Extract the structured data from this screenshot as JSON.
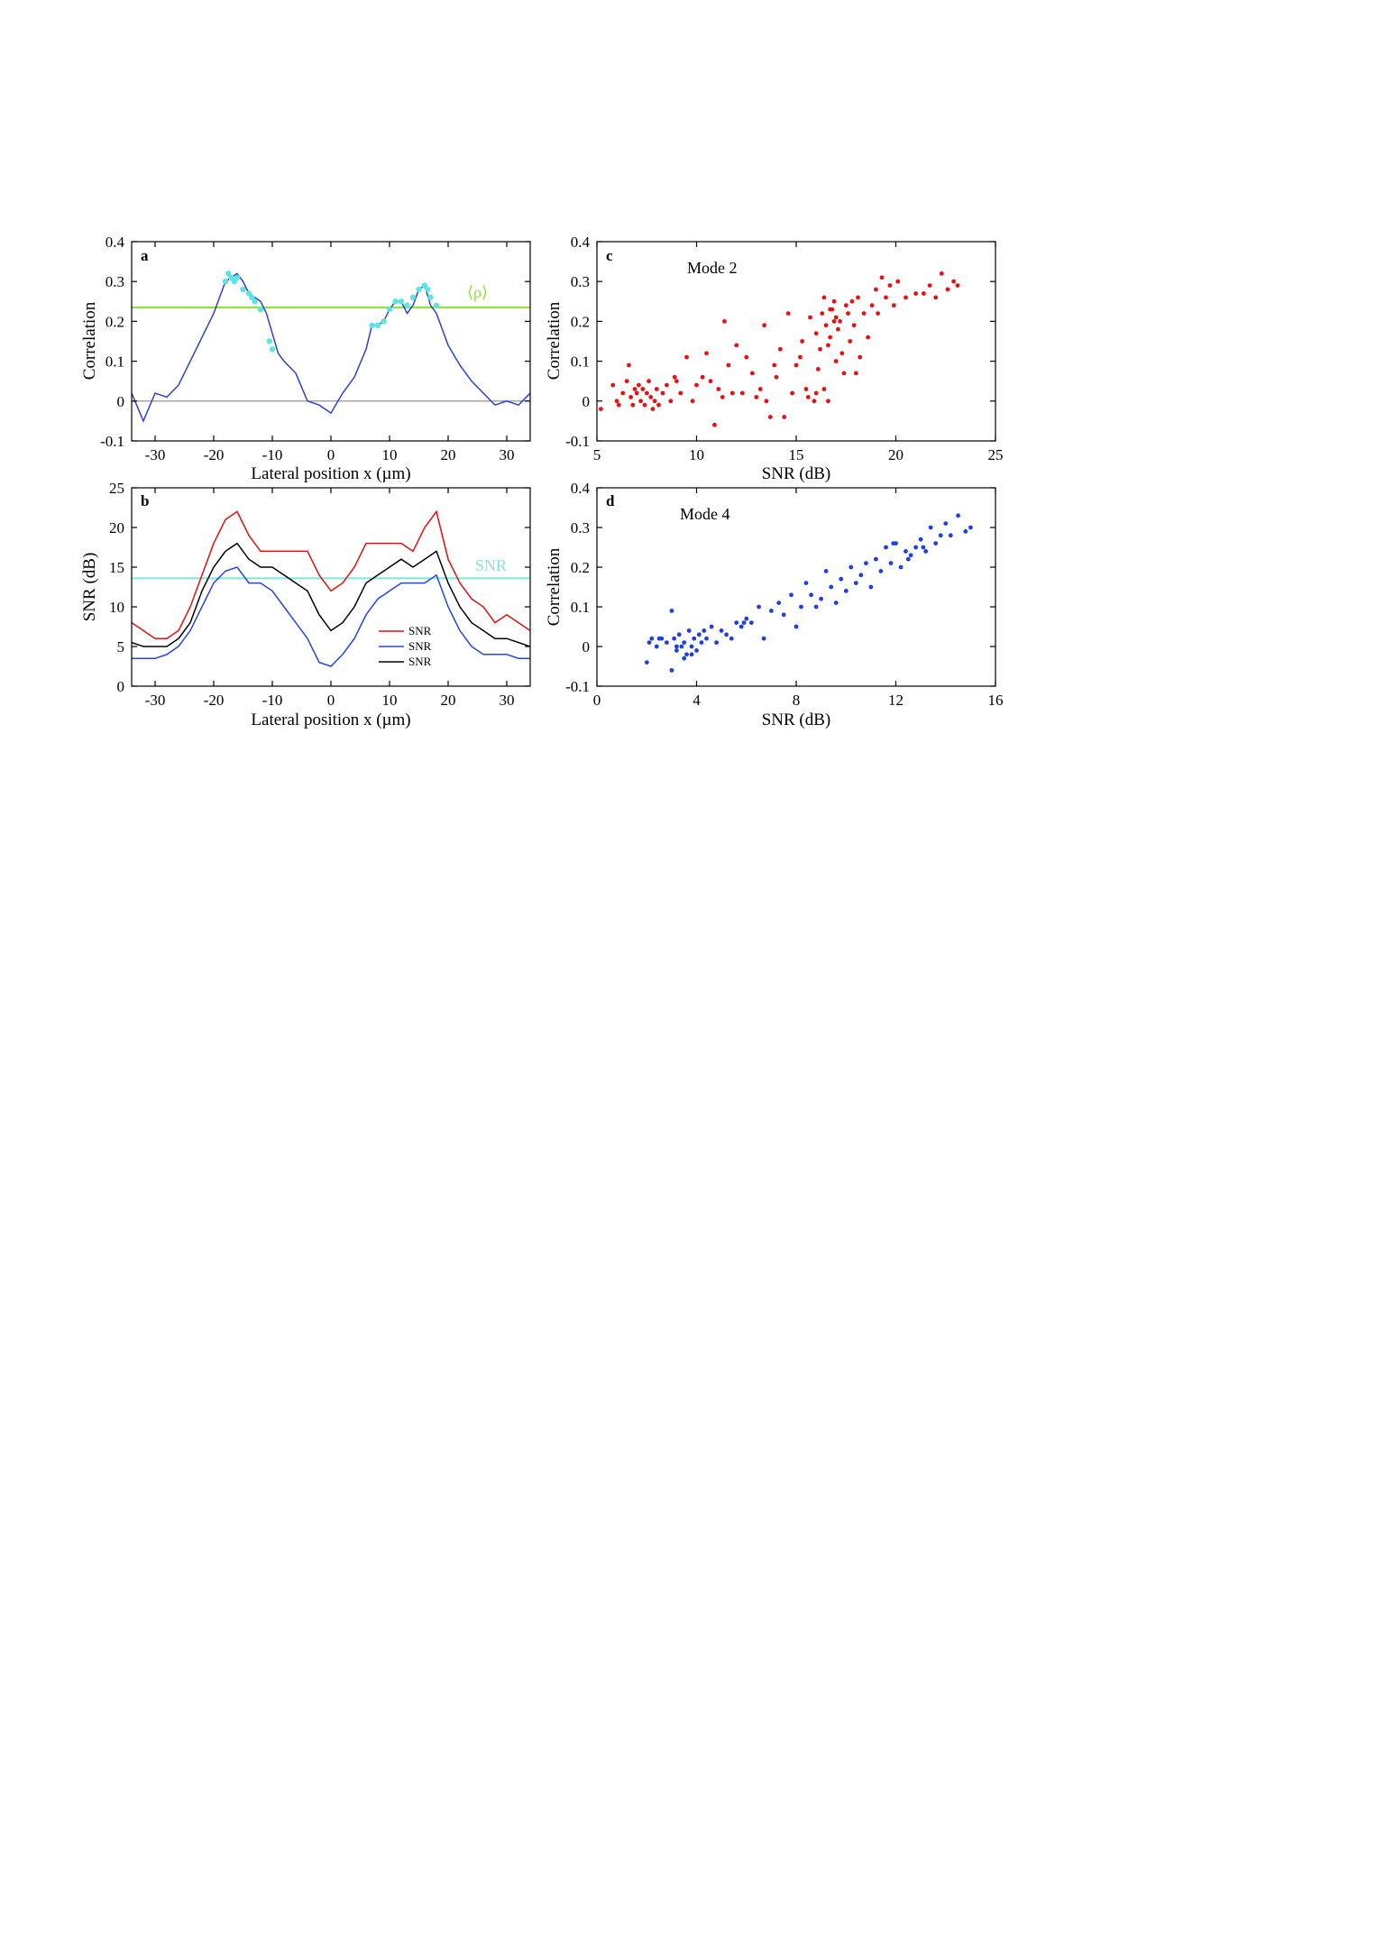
{
  "colors": {
    "corr_line": "#2b3fd6",
    "corr_markers": "#5fe3e3",
    "mean_line": "#8ee23a",
    "zero_line": "#888888",
    "snr2": "#e01010",
    "snr4": "#2546e0",
    "snr24": "#000000",
    "snr_threshold": "#7fe8d8",
    "scatter_c": "#e81010",
    "scatter_d": "#1f3fe0"
  },
  "chart_data": [
    {
      "panel": "a",
      "type": "line",
      "xlabel": "Lateral position x (µm)",
      "ylabel": "Correlation",
      "xlim": [
        -34,
        34
      ],
      "ylim": [
        -0.1,
        0.4
      ],
      "xticks": [
        "-30",
        "-20",
        "-10",
        "0",
        "10",
        "20",
        "30"
      ],
      "yticks": [
        "-0.1",
        "0",
        "0.1",
        "0.2",
        "0.3",
        "0.4"
      ],
      "reference_lines": [
        {
          "y": 0.235,
          "label": "⟨ρ⟩"
        },
        {
          "y": 0
        }
      ],
      "x": [
        -34,
        -32,
        -30,
        -28,
        -26,
        -24,
        -22,
        -20,
        -19,
        -18,
        -17,
        -16,
        -15,
        -14,
        -13,
        -12,
        -11,
        -10,
        -9,
        -8,
        -6,
        -4,
        -2,
        0,
        2,
        4,
        6,
        7,
        8,
        9,
        10,
        11,
        12,
        13,
        14,
        15,
        16,
        17,
        18,
        19,
        20,
        22,
        24,
        26,
        28,
        30,
        32,
        34
      ],
      "y": [
        0.02,
        -0.05,
        0.02,
        0.01,
        0.04,
        0.1,
        0.16,
        0.22,
        0.26,
        0.3,
        0.31,
        0.32,
        0.3,
        0.27,
        0.26,
        0.25,
        0.22,
        0.17,
        0.12,
        0.1,
        0.07,
        0.0,
        -0.01,
        -0.03,
        0.02,
        0.06,
        0.13,
        0.19,
        0.19,
        0.2,
        0.23,
        0.25,
        0.25,
        0.22,
        0.24,
        0.28,
        0.29,
        0.24,
        0.22,
        0.18,
        0.14,
        0.09,
        0.05,
        0.02,
        -0.01,
        0.0,
        -0.01,
        0.02
      ],
      "highlight_points": [
        [
          -18,
          0.3
        ],
        [
          -17.5,
          0.32
        ],
        [
          -17,
          0.31
        ],
        [
          -16.5,
          0.3
        ],
        [
          -16,
          0.31
        ],
        [
          -15,
          0.28
        ],
        [
          -14,
          0.27
        ],
        [
          -13.5,
          0.26
        ],
        [
          -13,
          0.25
        ],
        [
          -12,
          0.23
        ],
        [
          -10.5,
          0.15
        ],
        [
          -10,
          0.13
        ],
        [
          7,
          0.19
        ],
        [
          8,
          0.19
        ],
        [
          9,
          0.2
        ],
        [
          10,
          0.23
        ],
        [
          11,
          0.25
        ],
        [
          12,
          0.25
        ],
        [
          13,
          0.24
        ],
        [
          14,
          0.26
        ],
        [
          15,
          0.28
        ],
        [
          16,
          0.29
        ],
        [
          16.5,
          0.28
        ],
        [
          17,
          0.26
        ],
        [
          18,
          0.24
        ]
      ]
    },
    {
      "panel": "b",
      "type": "line",
      "xlabel": "Lateral position x (µm)",
      "ylabel": "SNR (dB)",
      "xlim": [
        -34,
        34
      ],
      "ylim": [
        0,
        25
      ],
      "xticks": [
        "-30",
        "-20",
        "-10",
        "0",
        "10",
        "20",
        "30"
      ],
      "yticks": [
        "0",
        "5",
        "10",
        "15",
        "20",
        "25"
      ],
      "threshold": {
        "y": 13.6,
        "label": "SNR"
      },
      "legend": [
        "SNR",
        "SNR",
        "SNR"
      ],
      "x": [
        -34,
        -32,
        -30,
        -28,
        -26,
        -24,
        -22,
        -20,
        -18,
        -16,
        -14,
        -12,
        -10,
        -8,
        -6,
        -4,
        -2,
        0,
        2,
        4,
        6,
        8,
        10,
        12,
        14,
        16,
        18,
        20,
        22,
        24,
        26,
        28,
        30,
        32,
        34
      ],
      "series": [
        {
          "values": [
            8,
            7,
            6,
            6,
            7,
            10,
            14,
            18,
            21,
            22,
            19,
            17,
            17,
            17,
            17,
            17,
            14,
            12,
            13,
            15,
            18,
            18,
            18,
            18,
            17,
            20,
            22,
            16,
            13,
            11,
            10,
            8,
            9,
            8,
            7
          ]
        },
        {
          "values": [
            3.5,
            3.5,
            3.5,
            4,
            5,
            7,
            10,
            13,
            14.5,
            15,
            13,
            13,
            12,
            10,
            8,
            6,
            3,
            2.5,
            4,
            6,
            9,
            11,
            12,
            13,
            13,
            13,
            14,
            10,
            7,
            5,
            4,
            4,
            4,
            3.5,
            3.5
          ]
        },
        {
          "values": [
            5.5,
            5,
            5,
            5,
            6,
            8,
            12,
            15,
            17,
            18,
            16,
            15,
            15,
            14,
            13,
            12,
            9,
            7,
            8,
            10,
            13,
            14,
            15,
            16,
            15,
            16,
            17,
            13,
            10,
            8,
            7,
            6,
            6,
            5.5,
            5
          ]
        }
      ]
    },
    {
      "panel": "c",
      "type": "scatter",
      "title": "Mode 2",
      "xlabel": "SNR (dB)",
      "ylabel": "Correlation",
      "xlim": [
        5,
        25
      ],
      "ylim": [
        -0.1,
        0.4
      ],
      "xticks": [
        "5",
        "10",
        "15",
        "20",
        "25"
      ],
      "yticks": [
        "-0.1",
        "0",
        "0.1",
        "0.2",
        "0.3",
        "0.4"
      ],
      "points": [
        [
          5.2,
          -0.02
        ],
        [
          5.8,
          0.04
        ],
        [
          6.0,
          0.0
        ],
        [
          6.1,
          -0.01
        ],
        [
          6.3,
          0.02
        ],
        [
          6.5,
          0.05
        ],
        [
          6.6,
          0.09
        ],
        [
          6.7,
          0.01
        ],
        [
          6.8,
          -0.01
        ],
        [
          6.9,
          0.03
        ],
        [
          7.0,
          0.02
        ],
        [
          7.1,
          0.04
        ],
        [
          7.2,
          0.0
        ],
        [
          7.3,
          0.03
        ],
        [
          7.4,
          -0.01
        ],
        [
          7.5,
          0.02
        ],
        [
          7.6,
          0.05
        ],
        [
          7.7,
          0.01
        ],
        [
          7.8,
          -0.02
        ],
        [
          7.9,
          0.0
        ],
        [
          8.0,
          0.03
        ],
        [
          8.1,
          -0.01
        ],
        [
          8.3,
          0.02
        ],
        [
          8.5,
          0.04
        ],
        [
          8.7,
          0.0
        ],
        [
          8.9,
          0.06
        ],
        [
          9.0,
          0.05
        ],
        [
          9.2,
          0.02
        ],
        [
          9.5,
          0.11
        ],
        [
          9.8,
          0.0
        ],
        [
          10.0,
          0.04
        ],
        [
          10.3,
          0.06
        ],
        [
          10.5,
          0.12
        ],
        [
          10.7,
          0.05
        ],
        [
          10.9,
          -0.06
        ],
        [
          11.1,
          0.03
        ],
        [
          11.3,
          0.01
        ],
        [
          11.4,
          0.2
        ],
        [
          11.6,
          0.09
        ],
        [
          11.8,
          0.02
        ],
        [
          12.0,
          0.14
        ],
        [
          12.3,
          0.02
        ],
        [
          12.5,
          0.11
        ],
        [
          12.8,
          0.07
        ],
        [
          13.0,
          0.01
        ],
        [
          13.2,
          0.03
        ],
        [
          13.4,
          0.19
        ],
        [
          13.5,
          0.0
        ],
        [
          13.7,
          -0.04
        ],
        [
          13.9,
          0.09
        ],
        [
          14.0,
          0.06
        ],
        [
          14.2,
          0.13
        ],
        [
          14.4,
          -0.04
        ],
        [
          14.6,
          0.22
        ],
        [
          14.8,
          0.02
        ],
        [
          15.0,
          0.09
        ],
        [
          15.2,
          0.11
        ],
        [
          15.3,
          0.15
        ],
        [
          15.5,
          0.03
        ],
        [
          15.7,
          0.21
        ],
        [
          15.9,
          0.0
        ],
        [
          16.0,
          0.17
        ],
        [
          16.1,
          0.08
        ],
        [
          16.2,
          0.13
        ],
        [
          16.3,
          0.22
        ],
        [
          16.4,
          0.26
        ],
        [
          16.5,
          0.19
        ],
        [
          16.6,
          0.14
        ],
        [
          16.7,
          0.23
        ],
        [
          16.8,
          0.23
        ],
        [
          16.9,
          0.25
        ],
        [
          17.0,
          0.1
        ],
        [
          17.1,
          0.18
        ],
        [
          17.2,
          0.2
        ],
        [
          17.3,
          0.12
        ],
        [
          17.4,
          0.07
        ],
        [
          17.5,
          0.24
        ],
        [
          17.6,
          0.22
        ],
        [
          17.7,
          0.15
        ],
        [
          17.8,
          0.25
        ],
        [
          17.9,
          0.19
        ],
        [
          18.0,
          0.07
        ],
        [
          18.1,
          0.26
        ],
        [
          18.2,
          0.11
        ],
        [
          18.4,
          0.22
        ],
        [
          18.6,
          0.16
        ],
        [
          18.8,
          0.24
        ],
        [
          19.0,
          0.28
        ],
        [
          19.1,
          0.22
        ],
        [
          19.3,
          0.31
        ],
        [
          19.5,
          0.26
        ],
        [
          19.7,
          0.29
        ],
        [
          19.9,
          0.24
        ],
        [
          20.1,
          0.3
        ],
        [
          20.5,
          0.26
        ],
        [
          21.0,
          0.27
        ],
        [
          21.4,
          0.27
        ],
        [
          21.7,
          0.29
        ],
        [
          22.0,
          0.26
        ],
        [
          22.3,
          0.32
        ],
        [
          22.6,
          0.28
        ],
        [
          22.9,
          0.3
        ],
        [
          23.1,
          0.29
        ],
        [
          16.4,
          0.03
        ],
        [
          16.0,
          0.02
        ],
        [
          16.6,
          0.0
        ],
        [
          15.6,
          0.01
        ],
        [
          17.0,
          0.21
        ],
        [
          16.7,
          0.16
        ],
        [
          16.9,
          0.2
        ]
      ]
    },
    {
      "panel": "d",
      "type": "scatter",
      "title": "Mode 4",
      "xlabel": "SNR (dB)",
      "ylabel": "Correlation",
      "xlim": [
        0,
        16
      ],
      "ylim": [
        -0.1,
        0.4
      ],
      "xticks": [
        "0",
        "4",
        "8",
        "12",
        "16"
      ],
      "yticks": [
        "-0.1",
        "0",
        "0.1",
        "0.2",
        "0.3",
        "0.4"
      ],
      "points": [
        [
          2.0,
          -0.04
        ],
        [
          2.1,
          0.01
        ],
        [
          2.2,
          0.02
        ],
        [
          2.4,
          0.0
        ],
        [
          2.6,
          0.02
        ],
        [
          2.8,
          0.01
        ],
        [
          3.0,
          0.09
        ],
        [
          3.1,
          0.02
        ],
        [
          3.2,
          -0.01
        ],
        [
          3.3,
          0.03
        ],
        [
          3.4,
          0.0
        ],
        [
          3.5,
          0.01
        ],
        [
          3.6,
          -0.02
        ],
        [
          3.7,
          0.04
        ],
        [
          3.8,
          0.0
        ],
        [
          3.9,
          0.02
        ],
        [
          4.0,
          -0.01
        ],
        [
          4.1,
          0.03
        ],
        [
          4.2,
          0.01
        ],
        [
          4.4,
          0.02
        ],
        [
          4.6,
          0.05
        ],
        [
          4.8,
          0.01
        ],
        [
          5.0,
          0.04
        ],
        [
          5.2,
          0.03
        ],
        [
          5.4,
          0.02
        ],
        [
          5.6,
          0.06
        ],
        [
          5.8,
          0.05
        ],
        [
          6.0,
          0.07
        ],
        [
          6.2,
          0.06
        ],
        [
          6.5,
          0.1
        ],
        [
          6.7,
          0.02
        ],
        [
          7.0,
          0.09
        ],
        [
          7.3,
          0.11
        ],
        [
          7.5,
          0.08
        ],
        [
          7.8,
          0.13
        ],
        [
          8.0,
          0.05
        ],
        [
          8.2,
          0.1
        ],
        [
          8.4,
          0.16
        ],
        [
          8.6,
          0.13
        ],
        [
          8.8,
          0.1
        ],
        [
          9.0,
          0.12
        ],
        [
          9.2,
          0.19
        ],
        [
          9.4,
          0.15
        ],
        [
          9.6,
          0.11
        ],
        [
          9.8,
          0.17
        ],
        [
          10.0,
          0.14
        ],
        [
          10.2,
          0.2
        ],
        [
          10.4,
          0.16
        ],
        [
          10.6,
          0.18
        ],
        [
          10.8,
          0.21
        ],
        [
          11.0,
          0.15
        ],
        [
          11.2,
          0.22
        ],
        [
          11.4,
          0.19
        ],
        [
          11.6,
          0.25
        ],
        [
          11.8,
          0.21
        ],
        [
          12.0,
          0.26
        ],
        [
          12.2,
          0.2
        ],
        [
          12.4,
          0.24
        ],
        [
          12.6,
          0.23
        ],
        [
          12.8,
          0.25
        ],
        [
          13.0,
          0.27
        ],
        [
          13.2,
          0.24
        ],
        [
          13.4,
          0.3
        ],
        [
          13.6,
          0.26
        ],
        [
          13.8,
          0.28
        ],
        [
          14.0,
          0.31
        ],
        [
          14.2,
          0.28
        ],
        [
          14.5,
          0.33
        ],
        [
          14.8,
          0.29
        ],
        [
          15.0,
          0.3
        ],
        [
          3.2,
          0.0
        ],
        [
          3.5,
          -0.03
        ],
        [
          3.0,
          -0.06
        ],
        [
          3.8,
          -0.02
        ],
        [
          2.5,
          0.02
        ],
        [
          4.3,
          0.04
        ],
        [
          5.9,
          0.06
        ],
        [
          12.5,
          0.22
        ],
        [
          11.9,
          0.26
        ],
        [
          13.1,
          0.25
        ]
      ]
    }
  ]
}
